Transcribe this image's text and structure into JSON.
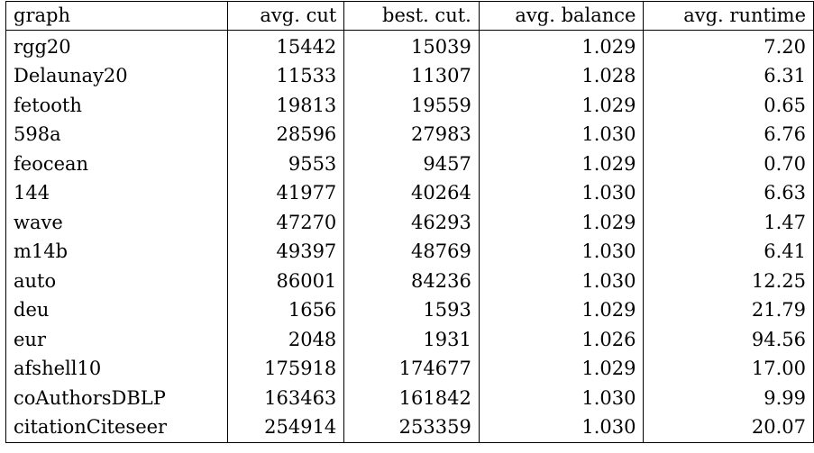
{
  "table": {
    "headers": [
      "graph",
      "avg. cut",
      "best. cut.",
      "avg. balance",
      "avg. runtime"
    ],
    "rows": [
      [
        "rgg20",
        "15442",
        "15039",
        "1.029",
        "7.20"
      ],
      [
        "Delaunay20",
        "11533",
        "11307",
        "1.028",
        "6.31"
      ],
      [
        "fetooth",
        "19813",
        "19559",
        "1.029",
        "0.65"
      ],
      [
        "598a",
        "28596",
        "27983",
        "1.030",
        "6.76"
      ],
      [
        "feocean",
        "9553",
        "9457",
        "1.029",
        "0.70"
      ],
      [
        "144",
        "41977",
        "40264",
        "1.030",
        "6.63"
      ],
      [
        "wave",
        "47270",
        "46293",
        "1.029",
        "1.47"
      ],
      [
        "m14b",
        "49397",
        "48769",
        "1.030",
        "6.41"
      ],
      [
        "auto",
        "86001",
        "84236",
        "1.030",
        "12.25"
      ],
      [
        "deu",
        "1656",
        "1593",
        "1.029",
        "21.79"
      ],
      [
        "eur",
        "2048",
        "1931",
        "1.026",
        "94.56"
      ],
      [
        "afshell10",
        "175918",
        "174677",
        "1.029",
        "17.00"
      ],
      [
        "coAuthorsDBLP",
        "163463",
        "161842",
        "1.030",
        "9.99"
      ],
      [
        "citationCiteseer",
        "254914",
        "253359",
        "1.030",
        "20.07"
      ]
    ]
  }
}
